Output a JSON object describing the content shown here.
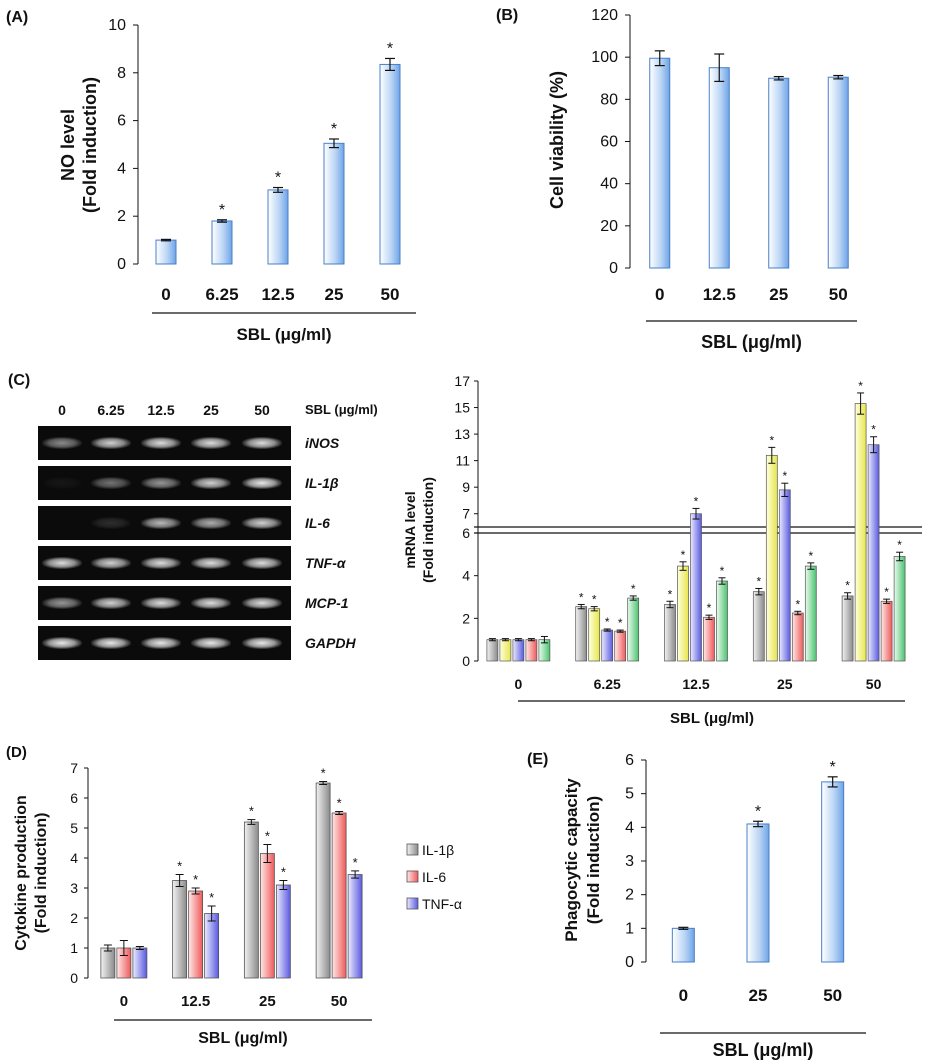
{
  "chart_data": [
    {
      "id": "A",
      "panel_label": "(A)",
      "type": "bar",
      "ylabel_lines": [
        "NO level",
        "(Fold induction)"
      ],
      "xlabel": "SBL (μg/ml)",
      "categories": [
        "0",
        "6.25",
        "12.5",
        "25",
        "50"
      ],
      "values": [
        1.0,
        1.8,
        3.1,
        5.05,
        8.35
      ],
      "errors": [
        0.03,
        0.05,
        0.1,
        0.18,
        0.25
      ],
      "significant": [
        false,
        true,
        true,
        true,
        true
      ],
      "ylim": [
        0,
        10
      ],
      "yticks": [
        "0",
        "2",
        "4",
        "6",
        "8",
        "10"
      ]
    },
    {
      "id": "B",
      "panel_label": "(B)",
      "type": "bar",
      "ylabel_lines": [
        "Cell viability (%)"
      ],
      "xlabel": "SBL (μg/ml)",
      "categories": [
        "0",
        "12.5",
        "25",
        "50"
      ],
      "values": [
        99.5,
        95,
        90,
        90.5
      ],
      "errors": [
        3.5,
        6.5,
        0.8,
        0.8
      ],
      "significant": [
        false,
        false,
        false,
        false
      ],
      "ylim": [
        0,
        120
      ],
      "yticks": [
        "0",
        "20",
        "40",
        "60",
        "80",
        "100",
        "120"
      ]
    },
    {
      "id": "C",
      "panel_label": "(C)",
      "type": "bar",
      "ylabel_lines": [
        "mRNA level",
        "(Fold induction)"
      ],
      "xlabel": "SBL (μg/ml)",
      "categories": [
        "0",
        "6.25",
        "12.5",
        "25",
        "50"
      ],
      "series_names": [
        "MCP-1",
        "IL-1β",
        "TNF-α",
        "IL-6",
        "iNOS"
      ],
      "series_colors": [
        "#9a9a9a",
        "#f1f15a",
        "#6f6fe8",
        "#f26b6b",
        "#5fcf80"
      ],
      "series": [
        {
          "name": "MCP-1",
          "values": [
            1.0,
            2.55,
            2.65,
            3.25,
            3.05
          ],
          "errors": [
            0.05,
            0.1,
            0.15,
            0.15,
            0.15
          ],
          "significant": [
            false,
            true,
            true,
            true,
            true
          ]
        },
        {
          "name": "IL-1β",
          "values": [
            1.0,
            2.45,
            4.45,
            11.4,
            15.3
          ],
          "errors": [
            0.05,
            0.1,
            0.2,
            0.6,
            0.8
          ],
          "significant": [
            false,
            true,
            true,
            true,
            true
          ]
        },
        {
          "name": "TNF-α",
          "values": [
            1.0,
            1.45,
            7.0,
            8.8,
            12.2
          ],
          "errors": [
            0.05,
            0.05,
            0.4,
            0.5,
            0.6
          ],
          "significant": [
            false,
            true,
            true,
            true,
            true
          ]
        },
        {
          "name": "IL-6",
          "values": [
            1.0,
            1.4,
            2.05,
            2.25,
            2.8
          ],
          "errors": [
            0.05,
            0.05,
            0.1,
            0.08,
            0.1
          ],
          "significant": [
            false,
            true,
            true,
            true,
            true
          ]
        },
        {
          "name": "iNOS",
          "values": [
            1.0,
            2.95,
            3.75,
            4.45,
            4.9
          ],
          "errors": [
            0.15,
            0.1,
            0.15,
            0.15,
            0.2
          ],
          "significant": [
            false,
            true,
            true,
            true,
            true
          ]
        }
      ],
      "yticks_lower": [
        "0",
        "2",
        "4",
        "6"
      ],
      "yticks_upper": [
        "7",
        "9",
        "11",
        "13",
        "15",
        "17"
      ],
      "axis_break": "6",
      "ylim_lower": [
        0,
        6
      ],
      "ylim_upper": [
        6,
        17
      ]
    },
    {
      "id": "D",
      "panel_label": "(D)",
      "type": "bar",
      "ylabel_lines": [
        "Cytokine production",
        "(Fold induction)"
      ],
      "xlabel": "SBL (μg/ml)",
      "categories": [
        "0",
        "12.5",
        "25",
        "50"
      ],
      "legend": [
        "IL-1β",
        "IL-6",
        "TNF-α"
      ],
      "series_colors": [
        "#9a9a9a",
        "#f26b6b",
        "#6f6fe8"
      ],
      "series": [
        {
          "name": "IL-1β",
          "values": [
            1.0,
            3.25,
            5.2,
            6.5
          ],
          "errors": [
            0.1,
            0.2,
            0.08,
            0.05
          ],
          "significant": [
            false,
            true,
            true,
            true
          ]
        },
        {
          "name": "IL-6",
          "values": [
            1.0,
            2.9,
            4.15,
            5.5
          ],
          "errors": [
            0.25,
            0.1,
            0.3,
            0.05
          ],
          "significant": [
            false,
            true,
            true,
            true
          ]
        },
        {
          "name": "TNF-α",
          "values": [
            1.0,
            2.15,
            3.1,
            3.45
          ],
          "errors": [
            0.05,
            0.25,
            0.15,
            0.12
          ],
          "significant": [
            false,
            true,
            true,
            true
          ]
        }
      ],
      "ylim": [
        0,
        7
      ],
      "yticks": [
        "0",
        "1",
        "2",
        "3",
        "4",
        "5",
        "6",
        "7"
      ]
    },
    {
      "id": "E",
      "panel_label": "(E)",
      "type": "bar",
      "ylabel_lines": [
        "Phagocytic capacity",
        "(Fold induction)"
      ],
      "xlabel": "SBL (μg/ml)",
      "categories": [
        "0",
        "25",
        "50"
      ],
      "values": [
        1.0,
        4.1,
        5.35
      ],
      "errors": [
        0.03,
        0.08,
        0.15
      ],
      "significant": [
        false,
        true,
        true
      ],
      "ylim": [
        0,
        6
      ],
      "yticks": [
        "0",
        "1",
        "2",
        "3",
        "4",
        "5",
        "6"
      ]
    }
  ],
  "gel": {
    "panel_label": "(C)",
    "header": "SBL (μg/ml)",
    "lanes": [
      "0",
      "6.25",
      "12.5",
      "25",
      "50"
    ],
    "genes": [
      {
        "name": "iNOS",
        "intensity": [
          0.55,
          0.85,
          0.9,
          0.9,
          0.9
        ]
      },
      {
        "name": "IL-1β",
        "intensity": [
          0.05,
          0.45,
          0.6,
          0.85,
          0.95
        ]
      },
      {
        "name": "IL-6",
        "intensity": [
          0.0,
          0.15,
          0.75,
          0.7,
          0.85
        ]
      },
      {
        "name": "TNF-α",
        "intensity": [
          0.9,
          0.85,
          0.9,
          0.9,
          0.9
        ]
      },
      {
        "name": "MCP-1",
        "intensity": [
          0.6,
          0.85,
          0.9,
          0.9,
          0.9
        ]
      },
      {
        "name": "GAPDH",
        "intensity": [
          0.95,
          0.95,
          0.95,
          0.95,
          0.95
        ]
      }
    ]
  },
  "significance_marker": "*"
}
